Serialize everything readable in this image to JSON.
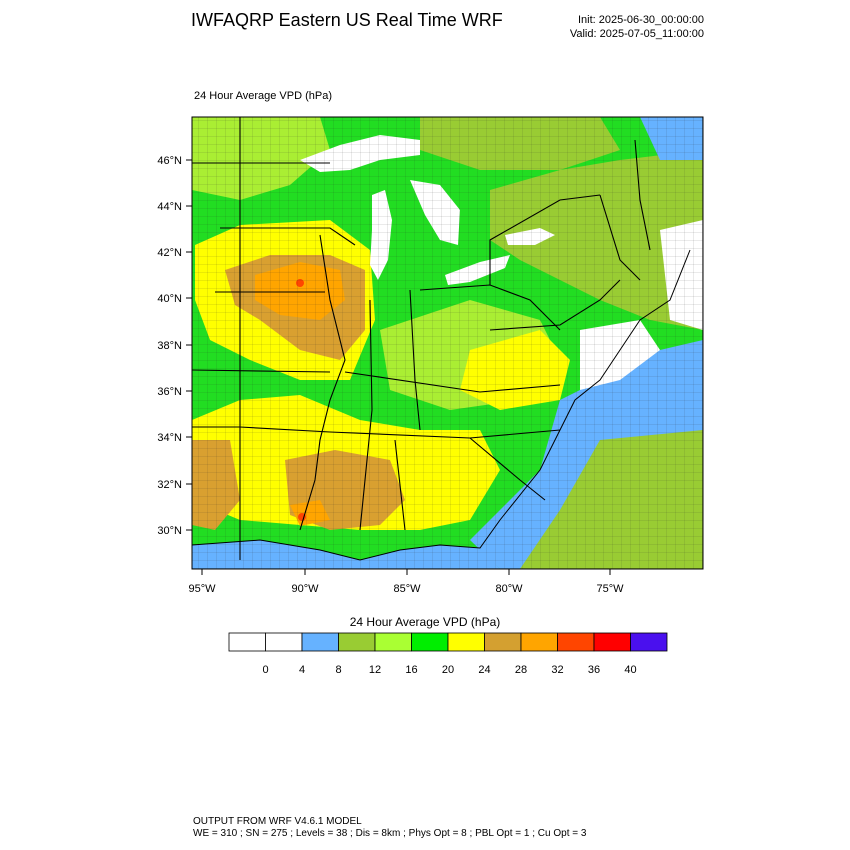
{
  "header": {
    "title": "IWFAQRP Eastern US Real Time WRF",
    "init": "Init: 2025-06-30_00:00:00",
    "valid": "Valid: 2025-07-05_11:00:00"
  },
  "plot": {
    "label": "24 Hour Average VPD   (hPa)",
    "lat_labels": [
      "46°N",
      "44°N",
      "42°N",
      "40°N",
      "38°N",
      "36°N",
      "34°N",
      "32°N",
      "30°N"
    ],
    "lon_labels": [
      "95°W",
      "90°W",
      "85°W",
      "80°W",
      "75°W"
    ]
  },
  "colorbar": {
    "title": "24 Hour Average VPD  (hPa)",
    "colors": [
      "#ffffff",
      "#ffffff",
      "#66b2ff",
      "#99cc33",
      "#aaff33",
      "#00ee00",
      "#ffff00",
      "#d4a030",
      "#ffa500",
      "#ff4500",
      "#ff0000",
      "#4a10ee"
    ],
    "tick_labels": [
      "0",
      "4",
      "8",
      "12",
      "16",
      "20",
      "24",
      "28",
      "32",
      "36",
      "40"
    ]
  },
  "footer": {
    "line1": "OUTPUT FROM WRF V4.6.1 MODEL",
    "line2": "WE = 310 ; SN = 275 ; Levels = 38 ; Dis = 8km ; Phys Opt = 8 ; PBL Opt = 1 ; Cu Opt = 3"
  }
}
